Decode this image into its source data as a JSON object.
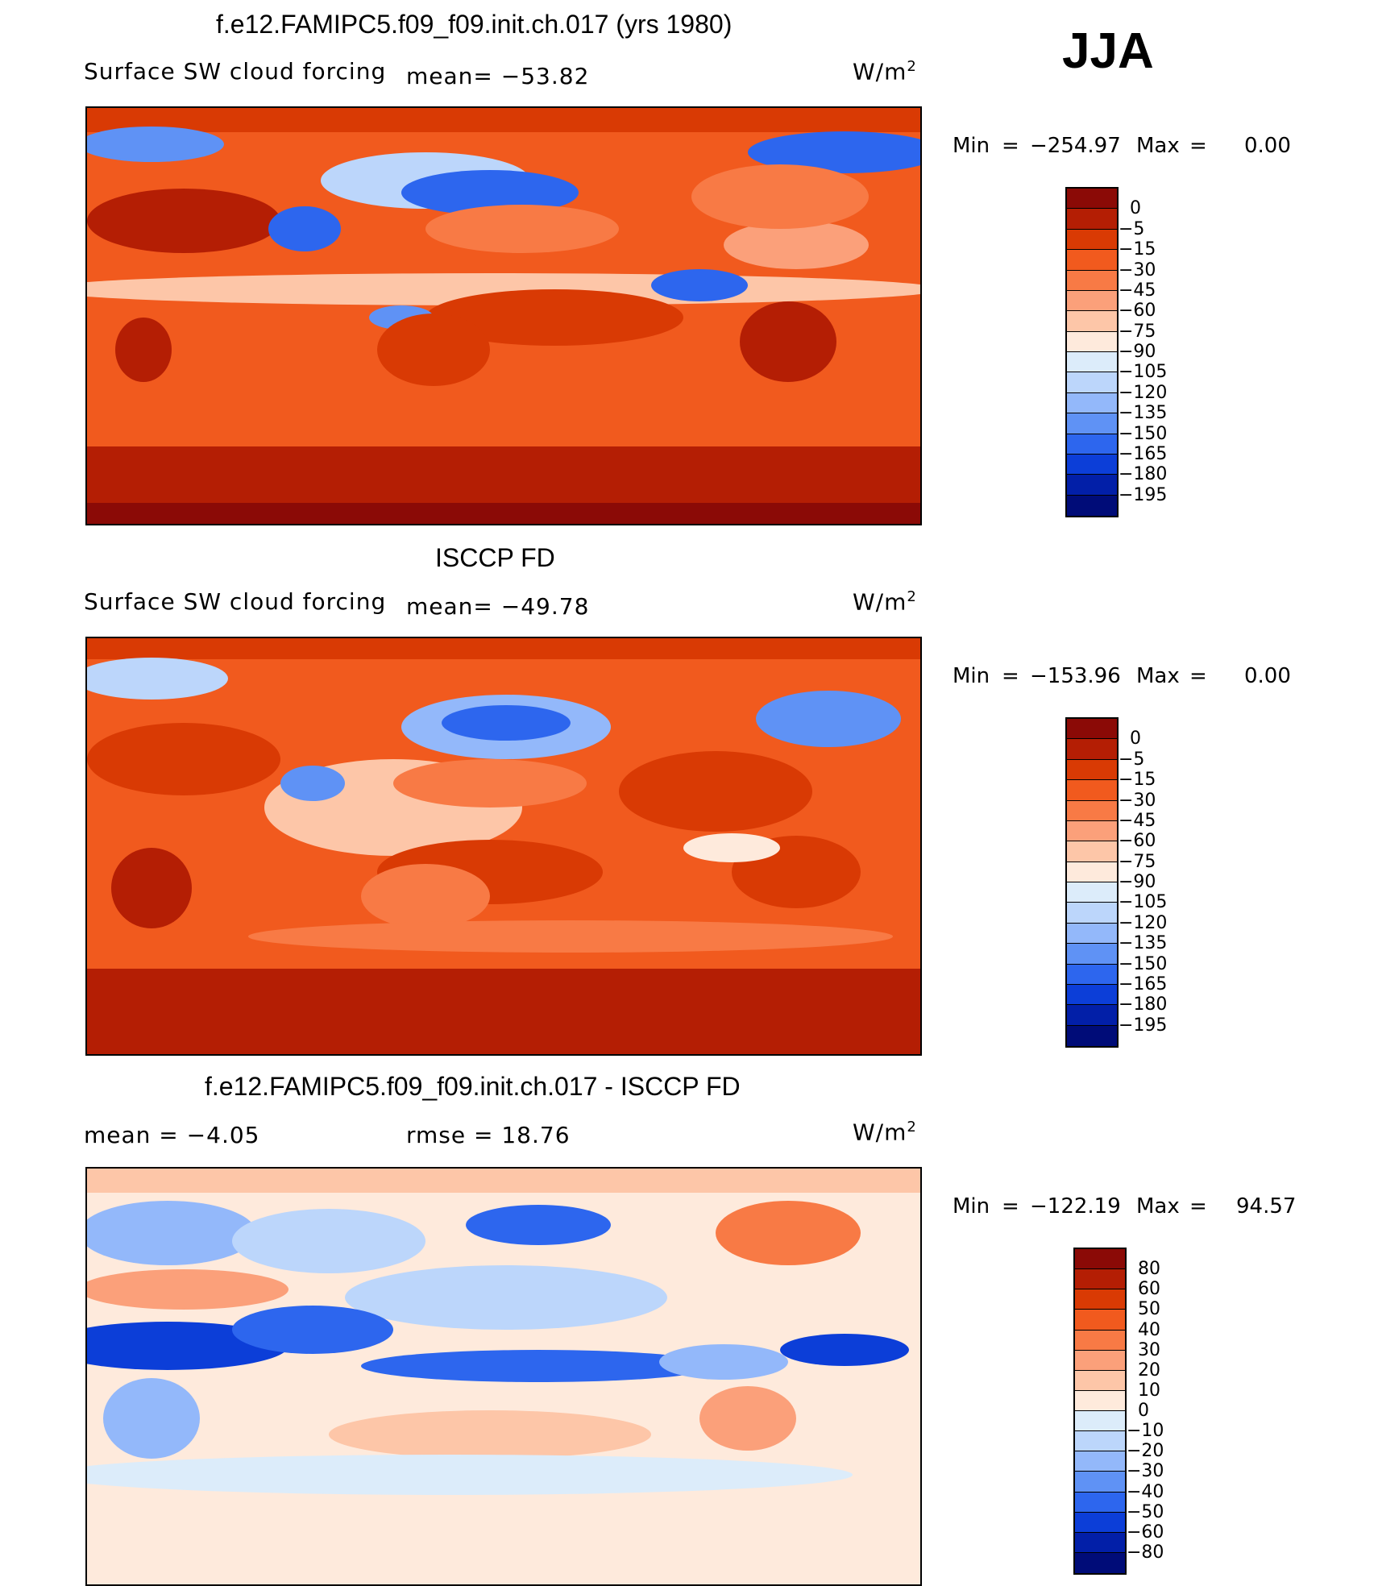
{
  "season": "JJA",
  "units_prefix": "W/m",
  "units_exp": "2",
  "panels": [
    {
      "title": "f.e12.FAMIPC5.f09_f09.init.ch.017 (yrs 1980)",
      "variable": "Surface SW cloud forcing",
      "stat_left": "",
      "stat_mean": "mean= −53.82",
      "min_label": "Min",
      "min_value": "−254.97",
      "max_label": "Max",
      "max_value": "0.00",
      "levels": [
        "0",
        "−5",
        "−15",
        "−30",
        "−45",
        "−60",
        "−75",
        "−90",
        "−105",
        "−120",
        "−135",
        "−150",
        "−165",
        "−180",
        "−195"
      ],
      "colors": [
        "#8b0a06",
        "#b41e04",
        "#d93a04",
        "#f15a1e",
        "#f87a45",
        "#fba07a",
        "#fdc6a8",
        "#feeadc",
        "#dcecfa",
        "#bcd6fb",
        "#93b8fa",
        "#5f92f5",
        "#2d66ee",
        "#0c3ed8",
        "#021fa8",
        "#000c78"
      ]
    },
    {
      "title": "ISCCP FD",
      "variable": "Surface SW cloud forcing",
      "stat_left": "",
      "stat_mean": "mean= −49.78",
      "min_label": "Min",
      "min_value": "−153.96",
      "max_label": "Max",
      "max_value": "0.00",
      "levels": [
        "0",
        "−5",
        "−15",
        "−30",
        "−45",
        "−60",
        "−75",
        "−90",
        "−105",
        "−120",
        "−135",
        "−150",
        "−165",
        "−180",
        "−195"
      ],
      "colors": [
        "#8b0a06",
        "#b41e04",
        "#d93a04",
        "#f15a1e",
        "#f87a45",
        "#fba07a",
        "#fdc6a8",
        "#feeadc",
        "#dcecfa",
        "#bcd6fb",
        "#93b8fa",
        "#5f92f5",
        "#2d66ee",
        "#0c3ed8",
        "#021fa8",
        "#000c78"
      ]
    },
    {
      "title": "f.e12.FAMIPC5.f09_f09.init.ch.017 - ISCCP FD",
      "variable": "",
      "stat_left": "mean =    −4.05",
      "stat_mean": "rmse =    18.76",
      "min_label": "Min",
      "min_value": "−122.19",
      "max_label": "Max",
      "max_value": "94.57",
      "levels": [
        "80",
        "60",
        "50",
        "40",
        "30",
        "20",
        "10",
        "0",
        "−10",
        "−20",
        "−30",
        "−40",
        "−50",
        "−60",
        "−80"
      ],
      "colors": [
        "#8b0a06",
        "#b41e04",
        "#d93a04",
        "#f15a1e",
        "#f87a45",
        "#fba07a",
        "#fdc6a8",
        "#feeadc",
        "#dcecfa",
        "#bcd6fb",
        "#93b8fa",
        "#5f92f5",
        "#2d66ee",
        "#0c3ed8",
        "#021fa8",
        "#000c78"
      ]
    }
  ],
  "chart_data": [
    {
      "type": "heatmap",
      "title": "f.e12.FAMIPC5.f09_f09.init.ch.017 (yrs 1980)",
      "subtitle": "Surface SW cloud forcing",
      "units": "W/m2",
      "mean": -53.82,
      "min": -254.97,
      "max": 0.0,
      "levels": [
        0,
        -5,
        -15,
        -30,
        -45,
        -60,
        -75,
        -90,
        -105,
        -120,
        -135,
        -150,
        -165,
        -180,
        -195
      ],
      "season": "JJA"
    },
    {
      "type": "heatmap",
      "title": "ISCCP FD",
      "subtitle": "Surface SW cloud forcing",
      "units": "W/m2",
      "mean": -49.78,
      "min": -153.96,
      "max": 0.0,
      "levels": [
        0,
        -5,
        -15,
        -30,
        -45,
        -60,
        -75,
        -90,
        -105,
        -120,
        -135,
        -150,
        -165,
        -180,
        -195
      ],
      "season": "JJA"
    },
    {
      "type": "heatmap",
      "title": "f.e12.FAMIPC5.f09_f09.init.ch.017 - ISCCP FD",
      "units": "W/m2",
      "mean": -4.05,
      "rmse": 18.76,
      "min": -122.19,
      "max": 94.57,
      "levels": [
        80,
        60,
        50,
        40,
        30,
        20,
        10,
        0,
        -10,
        -20,
        -30,
        -40,
        -50,
        -60,
        -80
      ],
      "season": "JJA"
    }
  ]
}
